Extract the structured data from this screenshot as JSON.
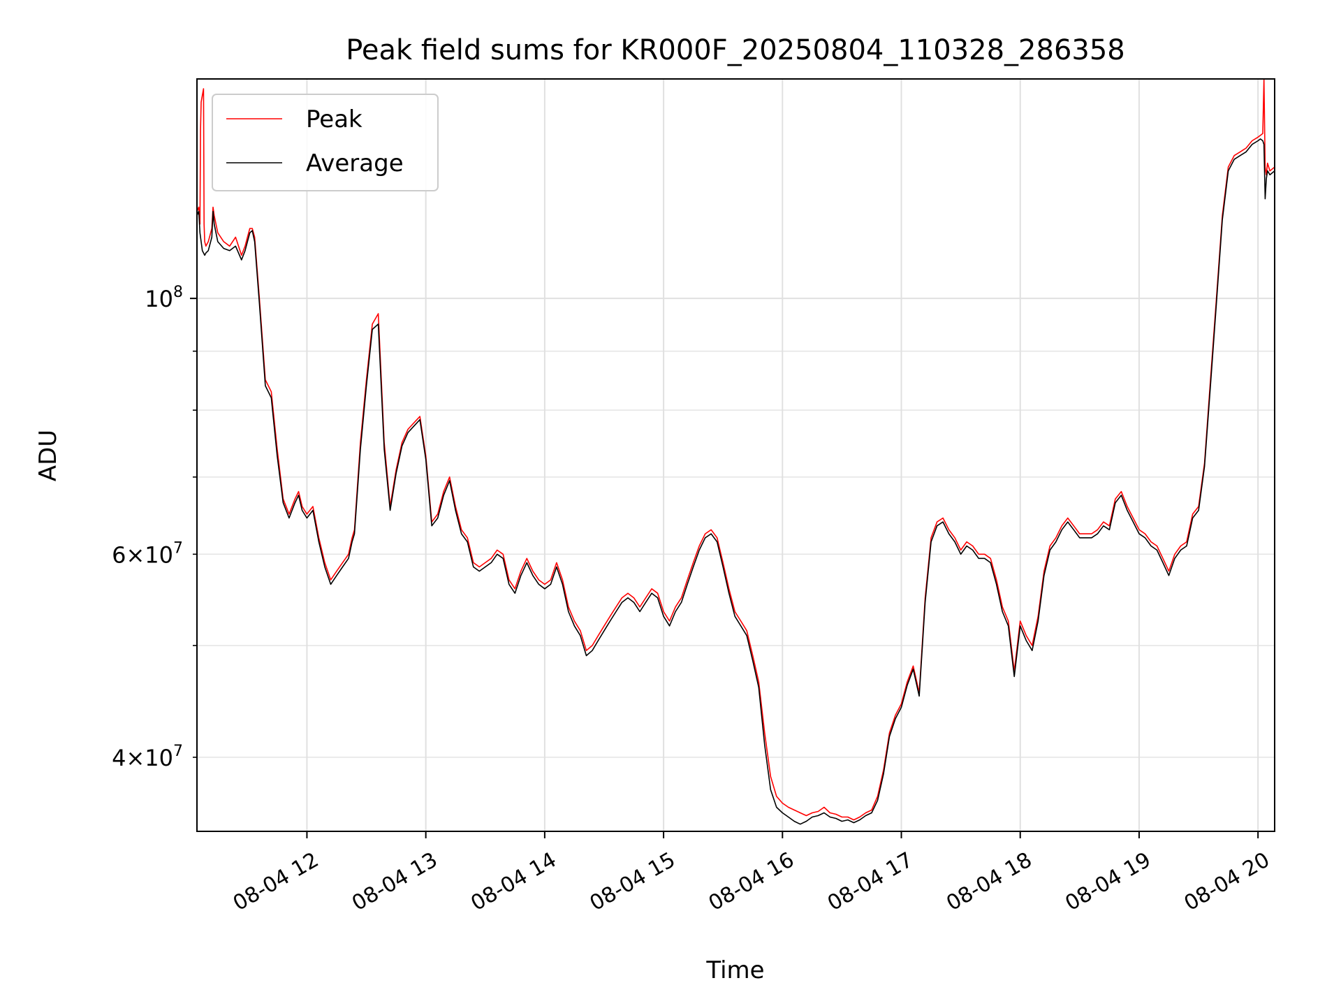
{
  "chart_data": {
    "type": "line",
    "title": "Peak field sums for KR000F_20250804_110328_286358",
    "xlabel": "Time",
    "ylabel": "ADU",
    "x_unit": "hour of day on 2025-08-04",
    "xlim": [
      11.075,
      20.14
    ],
    "ylim": [
      34500000,
      155000000
    ],
    "y_scale": "log",
    "grid": true,
    "legend_position": "top-left",
    "x_ticks": [
      {
        "value": 12,
        "label": "08-04 12"
      },
      {
        "value": 13,
        "label": "08-04 13"
      },
      {
        "value": 14,
        "label": "08-04 14"
      },
      {
        "value": 15,
        "label": "08-04 15"
      },
      {
        "value": 16,
        "label": "08-04 16"
      },
      {
        "value": 17,
        "label": "08-04 17"
      },
      {
        "value": 18,
        "label": "08-04 18"
      },
      {
        "value": 19,
        "label": "08-04 19"
      },
      {
        "value": 20,
        "label": "08-04 20"
      }
    ],
    "y_major_ticks": [
      {
        "value": 100000000,
        "base": "10",
        "exp": "8"
      }
    ],
    "y_minor_ticks": [
      {
        "value": 40000000,
        "mant": "4",
        "exp": "7"
      },
      {
        "value": 60000000,
        "mant": "6",
        "exp": "7"
      }
    ],
    "y_minor_gridlines": [
      30000000,
      40000000,
      50000000,
      60000000,
      70000000,
      80000000,
      90000000
    ],
    "series": [
      {
        "name": "Peak",
        "color": "#ff0000",
        "x": [
          11.075,
          11.09,
          11.1,
          11.105,
          11.11,
          11.12,
          11.13,
          11.135,
          11.14,
          11.15,
          11.17,
          11.2,
          11.21,
          11.22,
          11.25,
          11.3,
          11.35,
          11.4,
          11.45,
          11.48,
          11.5,
          11.52,
          11.54,
          11.56,
          11.6,
          11.65,
          11.7,
          11.75,
          11.8,
          11.85,
          11.9,
          11.93,
          11.96,
          12.0,
          12.05,
          12.1,
          12.15,
          12.2,
          12.25,
          12.3,
          12.35,
          12.38,
          12.4,
          12.45,
          12.5,
          12.55,
          12.6,
          12.65,
          12.7,
          12.75,
          12.8,
          12.85,
          12.9,
          12.95,
          13.0,
          13.05,
          13.1,
          13.15,
          13.2,
          13.25,
          13.3,
          13.35,
          13.4,
          13.45,
          13.5,
          13.55,
          13.6,
          13.65,
          13.7,
          13.75,
          13.8,
          13.85,
          13.9,
          13.95,
          14.0,
          14.05,
          14.1,
          14.15,
          14.2,
          14.25,
          14.3,
          14.35,
          14.4,
          14.45,
          14.5,
          14.55,
          14.6,
          14.65,
          14.7,
          14.75,
          14.8,
          14.85,
          14.9,
          14.95,
          15.0,
          15.05,
          15.1,
          15.15,
          15.2,
          15.25,
          15.3,
          15.35,
          15.4,
          15.45,
          15.5,
          15.55,
          15.6,
          15.65,
          15.7,
          15.75,
          15.8,
          15.85,
          15.9,
          15.95,
          16.0,
          16.05,
          16.1,
          16.15,
          16.2,
          16.25,
          16.3,
          16.35,
          16.4,
          16.45,
          16.5,
          16.55,
          16.6,
          16.65,
          16.7,
          16.75,
          16.8,
          16.85,
          16.9,
          16.95,
          17.0,
          17.05,
          17.1,
          17.15,
          17.2,
          17.25,
          17.3,
          17.35,
          17.4,
          17.45,
          17.5,
          17.55,
          17.6,
          17.65,
          17.7,
          17.75,
          17.8,
          17.85,
          17.9,
          17.95,
          18.0,
          18.05,
          18.1,
          18.15,
          18.2,
          18.25,
          18.3,
          18.35,
          18.4,
          18.45,
          18.5,
          18.55,
          18.6,
          18.65,
          18.7,
          18.75,
          18.8,
          18.85,
          18.9,
          18.95,
          19.0,
          19.05,
          19.1,
          19.15,
          19.2,
          19.25,
          19.3,
          19.35,
          19.4,
          19.45,
          19.5,
          19.55,
          19.6,
          19.65,
          19.7,
          19.75,
          19.8,
          19.85,
          19.9,
          19.95,
          20.0,
          20.02,
          20.04,
          20.05,
          20.06,
          20.07,
          20.08,
          20.1,
          20.14
        ],
        "y": [
          119000000,
          120000000,
          116000000,
          140000000,
          148000000,
          150000000,
          152000000,
          116000000,
          112000000,
          111000000,
          112000000,
          115000000,
          120000000,
          118000000,
          114000000,
          112000000,
          111000000,
          113000000,
          109000000,
          111000000,
          113000000,
          115000000,
          115000000,
          113000000,
          100000000,
          85000000,
          83000000,
          74000000,
          67000000,
          65000000,
          67000000,
          68000000,
          66000000,
          65000000,
          66000000,
          62000000,
          59000000,
          57000000,
          58000000,
          59000000,
          60000000,
          62000000,
          63000000,
          75000000,
          85000000,
          95000000,
          97000000,
          75000000,
          66000000,
          71000000,
          75000000,
          77000000,
          78000000,
          79000000,
          73000000,
          64000000,
          65000000,
          68000000,
          70000000,
          66000000,
          63000000,
          62000000,
          59000000,
          58500000,
          59000000,
          59500000,
          60500000,
          60000000,
          57000000,
          56000000,
          58000000,
          59500000,
          58000000,
          57000000,
          56500000,
          57000000,
          59000000,
          57000000,
          54000000,
          52500000,
          51500000,
          49500000,
          50000000,
          51000000,
          52000000,
          53000000,
          54000000,
          55000000,
          55500000,
          55000000,
          54000000,
          55000000,
          56000000,
          55500000,
          53500000,
          52500000,
          54000000,
          55000000,
          57000000,
          59000000,
          61000000,
          62500000,
          63000000,
          62000000,
          59000000,
          56000000,
          53500000,
          52500000,
          51500000,
          49000000,
          46500000,
          42000000,
          38500000,
          37000000,
          36500000,
          36200000,
          36000000,
          35800000,
          35600000,
          35800000,
          35900000,
          36200000,
          35800000,
          35700000,
          35500000,
          35500000,
          35300000,
          35500000,
          35800000,
          36000000,
          37000000,
          39000000,
          42000000,
          43500000,
          44500000,
          46500000,
          48000000,
          45500000,
          55000000,
          62000000,
          64000000,
          64500000,
          63000000,
          62000000,
          60500000,
          61500000,
          61000000,
          60000000,
          60000000,
          59500000,
          57000000,
          54000000,
          52500000,
          47500000,
          52500000,
          51000000,
          50000000,
          53000000,
          58000000,
          61000000,
          62000000,
          63500000,
          64500000,
          63500000,
          62500000,
          62500000,
          62500000,
          63000000,
          64000000,
          63500000,
          67000000,
          68000000,
          66000000,
          64500000,
          63000000,
          62500000,
          61500000,
          61000000,
          59500000,
          58000000,
          60000000,
          61000000,
          61500000,
          65000000,
          66000000,
          72000000,
          85000000,
          100000000,
          118000000,
          130000000,
          133000000,
          134000000,
          135000000,
          137000000,
          138000000,
          138500000,
          139000000,
          155000000,
          130000000,
          128000000,
          131000000,
          129000000,
          130000000
        ]
      },
      {
        "name": "Average",
        "color": "#000000",
        "x": [
          11.075,
          11.09,
          11.1,
          11.12,
          11.14,
          11.15,
          11.17,
          11.2,
          11.21,
          11.22,
          11.25,
          11.3,
          11.35,
          11.4,
          11.45,
          11.48,
          11.5,
          11.52,
          11.54,
          11.56,
          11.6,
          11.65,
          11.7,
          11.75,
          11.8,
          11.85,
          11.9,
          11.93,
          11.96,
          12.0,
          12.05,
          12.1,
          12.15,
          12.2,
          12.25,
          12.3,
          12.35,
          12.38,
          12.4,
          12.45,
          12.5,
          12.55,
          12.6,
          12.65,
          12.7,
          12.75,
          12.8,
          12.85,
          12.9,
          12.95,
          13.0,
          13.05,
          13.1,
          13.15,
          13.2,
          13.25,
          13.3,
          13.35,
          13.4,
          13.45,
          13.5,
          13.55,
          13.6,
          13.65,
          13.7,
          13.75,
          13.8,
          13.85,
          13.9,
          13.95,
          14.0,
          14.05,
          14.1,
          14.15,
          14.2,
          14.25,
          14.3,
          14.35,
          14.4,
          14.45,
          14.5,
          14.55,
          14.6,
          14.65,
          14.7,
          14.75,
          14.8,
          14.85,
          14.9,
          14.95,
          15.0,
          15.05,
          15.1,
          15.15,
          15.2,
          15.25,
          15.3,
          15.35,
          15.4,
          15.45,
          15.5,
          15.55,
          15.6,
          15.65,
          15.7,
          15.75,
          15.8,
          15.85,
          15.9,
          15.95,
          16.0,
          16.05,
          16.1,
          16.15,
          16.2,
          16.25,
          16.3,
          16.35,
          16.4,
          16.45,
          16.5,
          16.55,
          16.6,
          16.65,
          16.7,
          16.75,
          16.8,
          16.85,
          16.9,
          16.95,
          17.0,
          17.05,
          17.1,
          17.15,
          17.2,
          17.25,
          17.3,
          17.35,
          17.4,
          17.45,
          17.5,
          17.55,
          17.6,
          17.65,
          17.7,
          17.75,
          17.8,
          17.85,
          17.9,
          17.95,
          18.0,
          18.05,
          18.1,
          18.15,
          18.2,
          18.25,
          18.3,
          18.35,
          18.4,
          18.45,
          18.5,
          18.55,
          18.6,
          18.65,
          18.7,
          18.75,
          18.8,
          18.85,
          18.9,
          18.95,
          19.0,
          19.05,
          19.1,
          19.15,
          19.2,
          19.25,
          19.3,
          19.35,
          19.4,
          19.45,
          19.5,
          19.55,
          19.6,
          19.65,
          19.7,
          19.75,
          19.8,
          19.85,
          19.9,
          19.95,
          20.0,
          20.02,
          20.04,
          20.05,
          20.06,
          20.07,
          20.08,
          20.1,
          20.14
        ],
        "y": [
          118000000,
          119000000,
          114000000,
          110000000,
          109000000,
          109500000,
          110000000,
          113000000,
          119000000,
          116000000,
          112000000,
          110500000,
          110000000,
          111000000,
          108000000,
          110000000,
          112000000,
          114000000,
          114500000,
          112000000,
          99000000,
          84000000,
          82000000,
          73000000,
          66500000,
          64500000,
          66500000,
          67500000,
          65500000,
          64500000,
          65500000,
          61500000,
          58500000,
          56500000,
          57500000,
          58500000,
          59500000,
          61500000,
          62500000,
          74000000,
          84000000,
          94000000,
          95000000,
          74000000,
          65500000,
          70500000,
          74500000,
          76500000,
          77500000,
          78500000,
          72500000,
          63500000,
          64500000,
          67500000,
          69500000,
          65500000,
          62500000,
          61500000,
          58500000,
          58000000,
          58500000,
          59000000,
          60000000,
          59500000,
          56500000,
          55500000,
          57500000,
          59000000,
          57500000,
          56500000,
          56000000,
          56500000,
          58500000,
          56500000,
          53500000,
          52000000,
          51000000,
          49000000,
          49500000,
          50500000,
          51500000,
          52500000,
          53500000,
          54500000,
          55000000,
          54500000,
          53500000,
          54500000,
          55500000,
          55000000,
          53000000,
          52000000,
          53500000,
          54500000,
          56500000,
          58500000,
          60500000,
          62000000,
          62500000,
          61500000,
          58500000,
          55500000,
          53000000,
          52000000,
          51000000,
          48500000,
          46000000,
          41000000,
          37500000,
          36200000,
          35800000,
          35500000,
          35200000,
          35000000,
          35200000,
          35500000,
          35600000,
          35800000,
          35500000,
          35400000,
          35200000,
          35300000,
          35100000,
          35300000,
          35600000,
          35800000,
          36700000,
          38700000,
          41700000,
          43200000,
          44200000,
          46200000,
          47700000,
          45200000,
          54500000,
          61500000,
          63500000,
          64000000,
          62500000,
          61500000,
          60000000,
          61000000,
          60500000,
          59500000,
          59500000,
          59000000,
          56500000,
          53500000,
          52000000,
          47000000,
          52000000,
          50500000,
          49500000,
          52500000,
          57500000,
          60500000,
          61500000,
          63000000,
          64000000,
          63000000,
          62000000,
          62000000,
          62000000,
          62500000,
          63500000,
          63000000,
          66500000,
          67500000,
          65500000,
          64000000,
          62500000,
          62000000,
          61000000,
          60500000,
          59000000,
          57500000,
          59500000,
          60500000,
          61000000,
          64500000,
          65500000,
          71500000,
          84000000,
          99000000,
          117000000,
          129000000,
          132000000,
          133000000,
          134000000,
          136000000,
          137000000,
          137500000,
          137000000,
          136000000,
          122000000,
          127000000,
          129000000,
          128000000,
          129000000
        ]
      }
    ]
  }
}
